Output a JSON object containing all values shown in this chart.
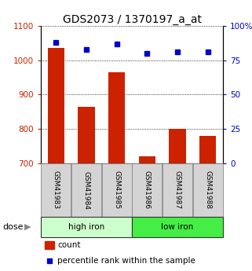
{
  "title": "GDS2073 / 1370197_a_at",
  "categories": [
    "GSM41983",
    "GSM41984",
    "GSM41985",
    "GSM41986",
    "GSM41987",
    "GSM41988"
  ],
  "bar_values": [
    1035,
    865,
    965,
    720,
    800,
    780
  ],
  "percentile_values": [
    88,
    83,
    87,
    80,
    81,
    81
  ],
  "bar_color": "#cc2200",
  "marker_color": "#0000cc",
  "ylim_left": [
    700,
    1100
  ],
  "ylim_right": [
    0,
    100
  ],
  "yticks_left": [
    700,
    800,
    900,
    1000,
    1100
  ],
  "yticks_right": [
    0,
    25,
    50,
    75,
    100
  ],
  "yticklabels_right": [
    "0",
    "25",
    "50",
    "75",
    "100%"
  ],
  "group_info": [
    {
      "label": "high iron",
      "start": 0,
      "end": 3,
      "color": "#ccffcc"
    },
    {
      "label": "low iron",
      "start": 3,
      "end": 6,
      "color": "#44ee44"
    }
  ],
  "dose_label": "dose",
  "legend_count": "count",
  "legend_percentile": "percentile rank within the sample",
  "title_fontsize": 10,
  "axis_color_left": "#cc2200",
  "axis_color_right": "#0000cc",
  "tick_fontsize": 7.5,
  "bar_width": 0.55,
  "bg_color": "#ffffff"
}
